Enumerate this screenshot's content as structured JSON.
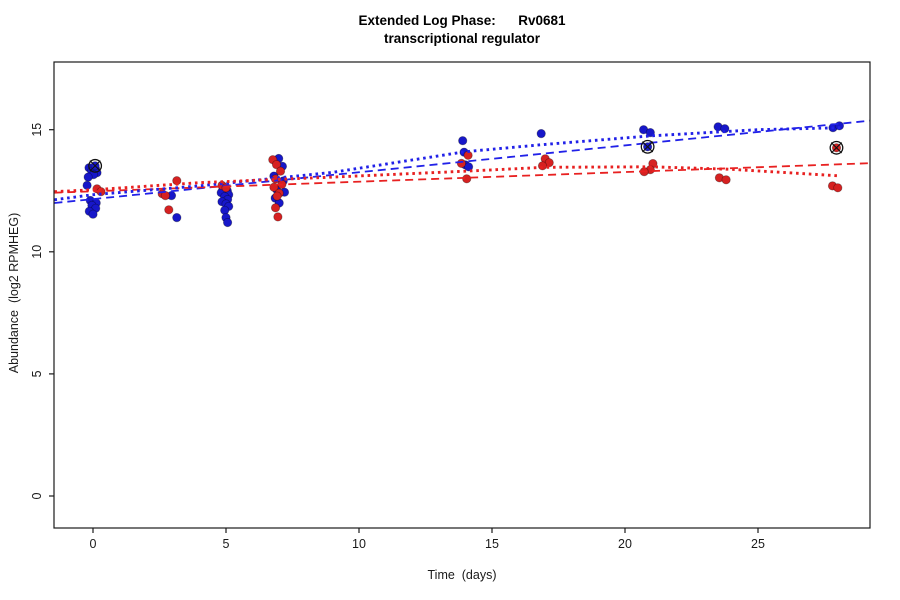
{
  "chart_data": {
    "type": "scatter",
    "title": "Extended Log Phase:      Rv0681",
    "subtitle": "transcriptional regulator",
    "xlabel": "Time  (days)",
    "ylabel": "Abundance  (log2 RPMHEG)",
    "xticks": [
      0,
      5,
      10,
      15,
      20,
      25
    ],
    "yticks": [
      0,
      5,
      10,
      15
    ],
    "xlim": [
      -1.45,
      29.2
    ],
    "ylim": [
      -1.3,
      17.8
    ],
    "grid": false,
    "legend": "none",
    "colors": {
      "blue_points": "#1717c9",
      "red_points": "#d62121",
      "blue_line": "#2121e8",
      "red_line": "#e82121",
      "axis": "#1a1a1a",
      "marker_ring": "#111111"
    },
    "series": [
      {
        "name": "blue",
        "color": "#1717c9",
        "points": [
          [
            -0.15,
            13.44
          ],
          [
            0.1,
            13.38
          ],
          [
            -0.05,
            13.3
          ],
          [
            0.15,
            13.24
          ],
          [
            0.02,
            13.16
          ],
          [
            -0.18,
            13.06
          ],
          [
            -0.22,
            12.72
          ],
          [
            -0.1,
            12.1
          ],
          [
            0.12,
            12.0
          ],
          [
            -0.04,
            11.9
          ],
          [
            0.1,
            11.78
          ],
          [
            -0.14,
            11.66
          ],
          [
            0.0,
            11.54
          ],
          [
            2.95,
            12.3
          ],
          [
            3.15,
            11.4
          ],
          [
            4.88,
            12.54
          ],
          [
            5.05,
            12.5
          ],
          [
            4.82,
            12.42
          ],
          [
            5.1,
            12.34
          ],
          [
            4.95,
            12.26
          ],
          [
            5.06,
            12.14
          ],
          [
            4.85,
            12.05
          ],
          [
            5.0,
            11.96
          ],
          [
            5.1,
            11.86
          ],
          [
            4.95,
            11.7
          ],
          [
            5.0,
            11.4
          ],
          [
            5.06,
            11.2
          ],
          [
            6.98,
            13.82
          ],
          [
            7.12,
            13.5
          ],
          [
            6.8,
            13.1
          ],
          [
            7.15,
            12.9
          ],
          [
            6.9,
            12.56
          ],
          [
            7.2,
            12.44
          ],
          [
            6.85,
            12.2
          ],
          [
            7.0,
            12.0
          ],
          [
            13.9,
            14.55
          ],
          [
            13.95,
            14.08
          ],
          [
            14.0,
            13.56
          ],
          [
            14.12,
            13.48
          ],
          [
            16.85,
            14.84
          ],
          [
            20.7,
            15.0
          ],
          [
            20.95,
            14.88
          ],
          [
            23.5,
            15.12
          ],
          [
            23.75,
            15.04
          ],
          [
            27.82,
            15.08
          ],
          [
            28.06,
            15.16
          ]
        ]
      },
      {
        "name": "red",
        "color": "#d62121",
        "points": [
          [
            0.15,
            12.58
          ],
          [
            0.3,
            12.46
          ],
          [
            3.15,
            12.91
          ],
          [
            2.6,
            12.38
          ],
          [
            2.72,
            12.3
          ],
          [
            2.85,
            11.72
          ],
          [
            4.85,
            12.72
          ],
          [
            5.0,
            12.62
          ],
          [
            6.76,
            13.77
          ],
          [
            6.9,
            13.57
          ],
          [
            7.05,
            13.3
          ],
          [
            6.86,
            12.98
          ],
          [
            7.1,
            12.76
          ],
          [
            6.8,
            12.64
          ],
          [
            7.0,
            12.4
          ],
          [
            6.92,
            12.28
          ],
          [
            6.86,
            11.8
          ],
          [
            6.95,
            11.43
          ],
          [
            14.1,
            13.95
          ],
          [
            13.85,
            13.62
          ],
          [
            14.05,
            12.99
          ],
          [
            17.0,
            13.81
          ],
          [
            17.15,
            13.65
          ],
          [
            16.9,
            13.52
          ],
          [
            21.05,
            13.61
          ],
          [
            20.95,
            13.36
          ],
          [
            20.72,
            13.28
          ],
          [
            23.55,
            13.03
          ],
          [
            23.8,
            12.95
          ],
          [
            27.8,
            12.7
          ],
          [
            28.0,
            12.62
          ]
        ]
      }
    ],
    "circled_points": [
      {
        "day": 0.08,
        "value": 13.52,
        "series": "blue"
      },
      {
        "day": 20.85,
        "value": 14.3,
        "series": "blue"
      },
      {
        "day": 27.95,
        "value": 14.26,
        "series": "red"
      }
    ],
    "trend_lines": [
      {
        "name": "blue-linear-fit",
        "style": "longdash",
        "color": "#2121e8",
        "width": 1.8,
        "points": [
          [
            -1.45,
            12.0
          ],
          [
            29.2,
            15.37
          ]
        ]
      },
      {
        "name": "red-linear-fit",
        "style": "longdash",
        "color": "#e82121",
        "width": 1.8,
        "points": [
          [
            -1.45,
            12.42
          ],
          [
            29.2,
            13.63
          ]
        ]
      },
      {
        "name": "blue-smooth-fit",
        "style": "dotted",
        "color": "#2121e8",
        "width": 2.9,
        "points": [
          [
            -1.45,
            12.13
          ],
          [
            0,
            12.34
          ],
          [
            4,
            12.7
          ],
          [
            9,
            13.25
          ],
          [
            14,
            14.1
          ],
          [
            17,
            14.4
          ],
          [
            21,
            14.75
          ],
          [
            25,
            15.0
          ],
          [
            28.1,
            15.08
          ]
        ]
      },
      {
        "name": "red-smooth-fit",
        "style": "dotted",
        "color": "#e82121",
        "width": 2.9,
        "points": [
          [
            -1.45,
            12.46
          ],
          [
            0,
            12.54
          ],
          [
            4,
            12.83
          ],
          [
            9,
            13.06
          ],
          [
            14,
            13.3
          ],
          [
            17,
            13.46
          ],
          [
            21,
            13.48
          ],
          [
            24,
            13.38
          ],
          [
            28.1,
            13.11
          ]
        ]
      }
    ]
  }
}
